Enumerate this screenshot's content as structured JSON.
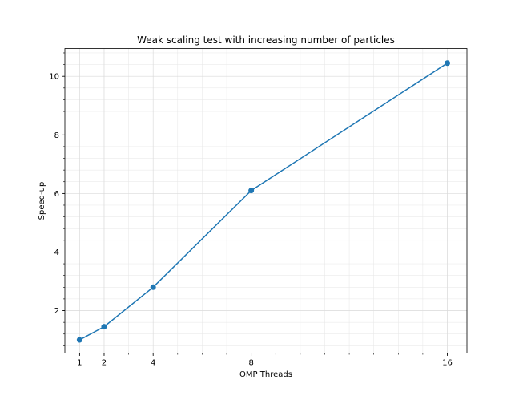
{
  "chart_data": {
    "type": "line",
    "title": "Weak scaling test with increasing number of particles",
    "xlabel": "OMP Threads",
    "ylabel": "Speed-up",
    "x": [
      1,
      2,
      4,
      8,
      16
    ],
    "series": [
      {
        "values": [
          1.0,
          1.45,
          2.8,
          6.1,
          10.45
        ]
      }
    ],
    "xticks": [
      1,
      2,
      4,
      8,
      16
    ],
    "yticks": [
      2,
      4,
      6,
      8,
      10
    ],
    "xlim": [
      0.4,
      16.8
    ],
    "ylim": [
      0.55,
      10.95
    ],
    "grid": true,
    "minor_ticks": true,
    "line_color": "#1f77b4",
    "marker": "circle"
  }
}
